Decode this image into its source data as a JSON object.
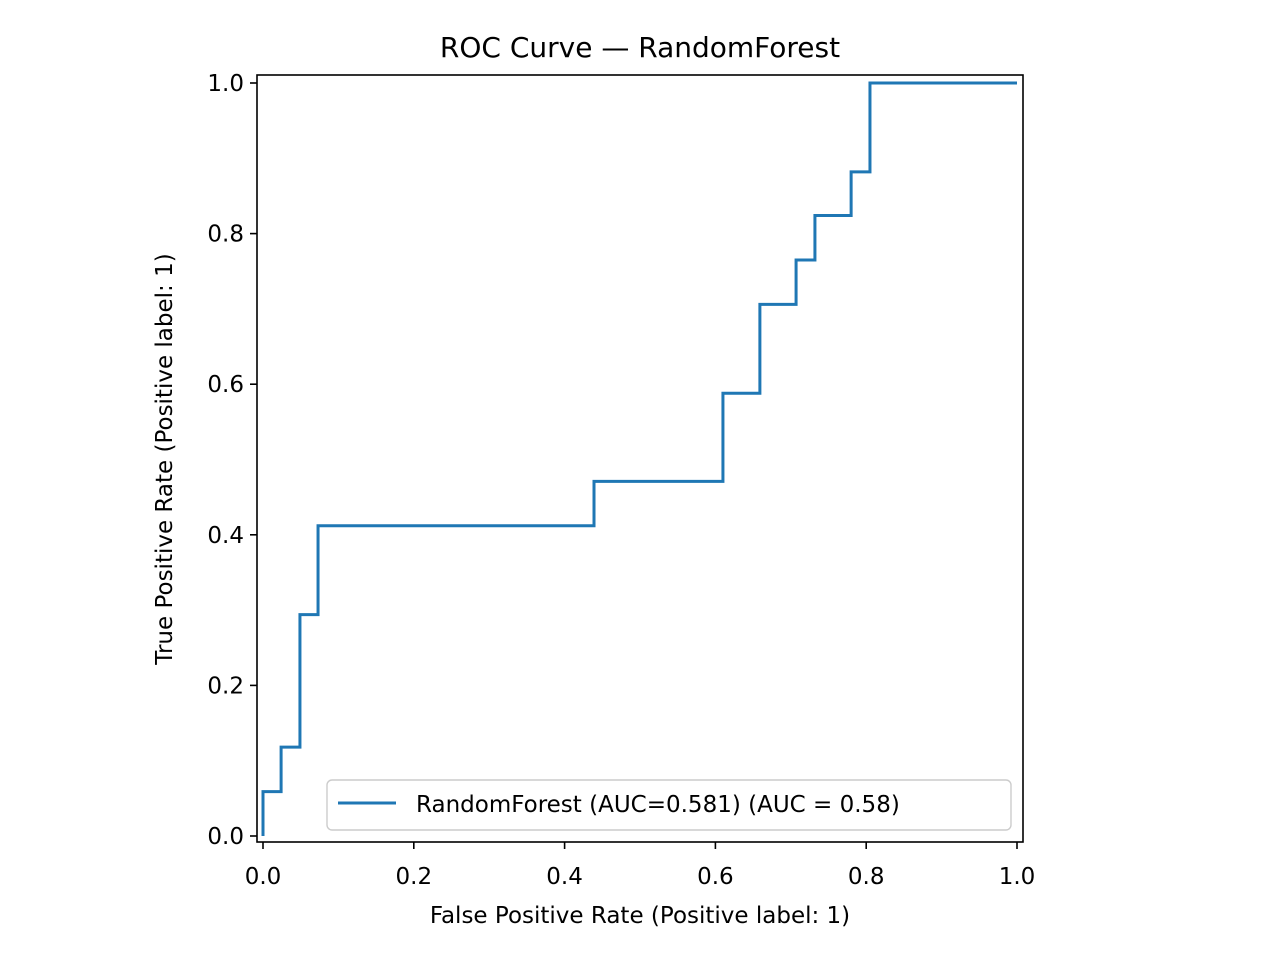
{
  "chart_data": {
    "type": "line",
    "title": "ROC Curve — RandomForest",
    "xlabel": "False Positive Rate (Positive label: 1)",
    "ylabel": "True Positive Rate (Positive label: 1)",
    "xlim": [
      0,
      1
    ],
    "ylim": [
      0,
      1
    ],
    "x_ticks": [
      "0.0",
      "0.2",
      "0.4",
      "0.6",
      "0.8",
      "1.0"
    ],
    "y_ticks": [
      "0.0",
      "0.2",
      "0.4",
      "0.6",
      "0.8",
      "1.0"
    ],
    "grid": false,
    "legend_position": "lower-right",
    "series": [
      {
        "name": "RandomForest (AUC=0.581) (AUC = 0.58)",
        "color": "#1f77b4",
        "points": [
          [
            0.0,
            0.0
          ],
          [
            0.0,
            0.059
          ],
          [
            0.024,
            0.059
          ],
          [
            0.024,
            0.118
          ],
          [
            0.049,
            0.118
          ],
          [
            0.049,
            0.294
          ],
          [
            0.073,
            0.294
          ],
          [
            0.073,
            0.412
          ],
          [
            0.439,
            0.412
          ],
          [
            0.439,
            0.471
          ],
          [
            0.61,
            0.471
          ],
          [
            0.61,
            0.588
          ],
          [
            0.659,
            0.588
          ],
          [
            0.659,
            0.706
          ],
          [
            0.707,
            0.706
          ],
          [
            0.707,
            0.765
          ],
          [
            0.732,
            0.765
          ],
          [
            0.732,
            0.824
          ],
          [
            0.78,
            0.824
          ],
          [
            0.78,
            0.882
          ],
          [
            0.805,
            0.882
          ],
          [
            0.805,
            1.0
          ],
          [
            1.0,
            1.0
          ]
        ]
      }
    ]
  }
}
